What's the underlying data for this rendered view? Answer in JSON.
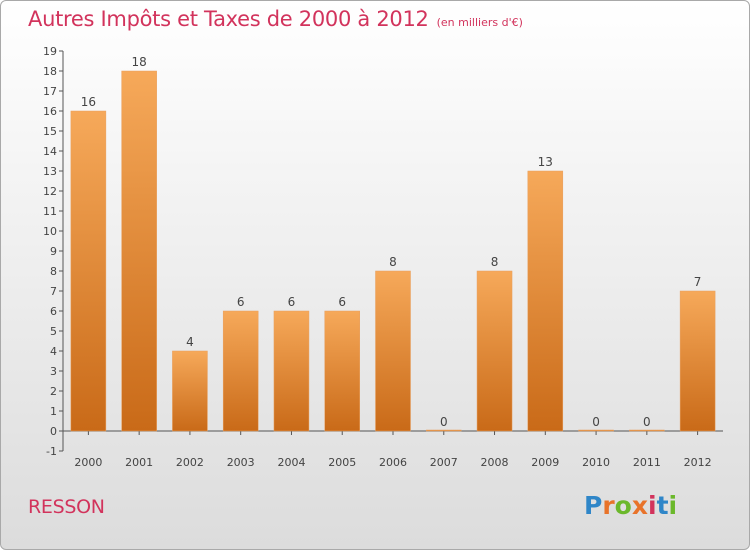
{
  "header": {
    "title": "Autres Impôts et Taxes de 2000 à 2012",
    "subtitle": "(en milliers d'€)"
  },
  "footer": {
    "commune": "RESSON",
    "logo_letters": [
      "P",
      "r",
      "o",
      "x",
      "i",
      "t",
      "i"
    ],
    "logo_colors": [
      "#2f86c8",
      "#e8732a",
      "#6bb82b",
      "#e8732a",
      "#d2335c",
      "#2f86c8",
      "#6bb82b"
    ]
  },
  "chart_data": {
    "type": "bar",
    "categories": [
      "2000",
      "2001",
      "2002",
      "2003",
      "2004",
      "2005",
      "2006",
      "2007",
      "2008",
      "2009",
      "2010",
      "2011",
      "2012"
    ],
    "values": [
      16,
      18,
      4,
      6,
      6,
      6,
      8,
      0,
      8,
      13,
      0,
      0,
      7
    ],
    "data_labels": [
      "16",
      "18",
      "4",
      "6",
      "6",
      "6",
      "8",
      "0",
      "8",
      "13",
      "0",
      "0",
      "7"
    ],
    "y_ticks": [
      19,
      18,
      17,
      16,
      15,
      14,
      13,
      12,
      11,
      10,
      9,
      8,
      7,
      6,
      5,
      4,
      3,
      2,
      1,
      0,
      -1
    ],
    "ylim": [
      -1,
      19
    ],
    "grid": false,
    "bar_color_light": "#f6a95a",
    "bar_color_dark": "#c96a18"
  }
}
